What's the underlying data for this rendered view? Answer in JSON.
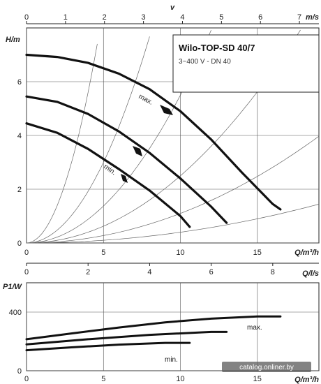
{
  "chart_data": [
    {
      "type": "line",
      "title": "Wilo-TOP-SD 40/7",
      "subtitle": "3~400 V - DN 40",
      "xlabel": "Q/m³/h",
      "ylabel": "H/m",
      "top_axis_label": "v",
      "top_axis_unit": "m/s",
      "xlim": [
        0,
        19
      ],
      "ylim": [
        0,
        8
      ],
      "top_axis_lim": [
        0,
        7.5
      ],
      "x_ticks": [
        "0",
        "5",
        "10",
        "15"
      ],
      "y_ticks": [
        "0",
        "2",
        "4",
        "6"
      ],
      "top_axis_ticks": [
        "0",
        "1",
        "2",
        "3",
        "4",
        "5",
        "6",
        "7"
      ],
      "grid": true,
      "series": [
        {
          "name": "max.",
          "x": [
            0,
            2,
            4,
            6,
            8,
            10,
            12,
            14,
            16,
            16.5
          ],
          "y": [
            7.0,
            6.92,
            6.7,
            6.3,
            5.72,
            4.9,
            3.85,
            2.62,
            1.45,
            1.25
          ]
        },
        {
          "x": [
            0,
            2,
            4,
            6,
            8,
            10,
            12,
            13.0
          ],
          "y": [
            5.45,
            5.25,
            4.8,
            4.15,
            3.35,
            2.4,
            1.35,
            0.75
          ]
        },
        {
          "name": "min.",
          "x": [
            0,
            2,
            4,
            6,
            8,
            10,
            10.6
          ],
          "y": [
            4.45,
            4.1,
            3.5,
            2.75,
            1.95,
            1.0,
            0.6
          ]
        }
      ]
    },
    {
      "type": "line",
      "xlabel": "Q/m³/h",
      "ylabel": "P1/W",
      "secondary_axis_label": "Q/l/s",
      "xlim": [
        0,
        19
      ],
      "ylim": [
        0,
        600
      ],
      "secondary_axis_lim": [
        0,
        9.5
      ],
      "x_ticks": [
        "0",
        "5",
        "10",
        "15"
      ],
      "y_ticks": [
        "0",
        "400"
      ],
      "secondary_axis_ticks": [
        "0",
        "2",
        "4",
        "6",
        "8"
      ],
      "grid": true,
      "series": [
        {
          "name": "max.",
          "x": [
            0,
            3,
            6,
            9,
            12,
            15,
            16.5
          ],
          "y": [
            215,
            255,
            295,
            330,
            355,
            370,
            370
          ]
        },
        {
          "x": [
            0,
            4,
            8,
            12,
            13.0
          ],
          "y": [
            180,
            215,
            245,
            265,
            265
          ]
        },
        {
          "name": "min.",
          "x": [
            0,
            3,
            6,
            9,
            10.6
          ],
          "y": [
            140,
            160,
            178,
            190,
            190
          ]
        }
      ]
    }
  ],
  "watermark": "catalog.onliner.by"
}
